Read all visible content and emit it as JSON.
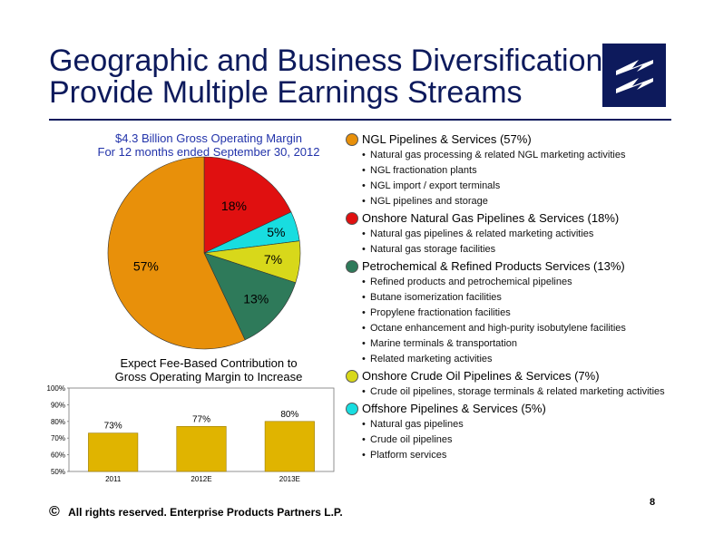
{
  "title": {
    "line1": "Geographic and Business Diversification",
    "line2": "Provide Multiple Earnings Streams"
  },
  "pie": {
    "caption_line1": "$4.3 Billion Gross Operating Margin",
    "caption_line2": "For 12 months ended September 30, 2012"
  },
  "chart_data": [
    {
      "type": "pie",
      "slices": [
        {
          "label": "NGL Pipelines & Services",
          "value": 57,
          "text": "57%",
          "color": "#e8900a"
        },
        {
          "label": "Onshore Natural Gas Pipelines & Services",
          "value": 18,
          "text": "18%",
          "color": "#e01010"
        },
        {
          "label": "Offshore Pipelines & Services",
          "value": 5,
          "text": "5%",
          "color": "#18dde0"
        },
        {
          "label": "Onshore Crude Oil Pipelines & Services",
          "value": 7,
          "text": "7%",
          "color": "#d8d81a"
        },
        {
          "label": "Petrochemical & Refined Products Services",
          "value": 13,
          "text": "13%",
          "color": "#2e7a5a"
        }
      ]
    },
    {
      "type": "bar",
      "title": "Expect Fee-Based Contribution to Gross Operating Margin to Increase",
      "categories": [
        "2011",
        "2012E",
        "2013E"
      ],
      "values": [
        73,
        77,
        80
      ],
      "value_labels": [
        "73%",
        "77%",
        "80%"
      ],
      "ylim": [
        50,
        100
      ],
      "yticks": [
        "50%",
        "60%",
        "70%",
        "80%",
        "90%",
        "100%"
      ],
      "color": "#e0b400"
    }
  ],
  "bar": {
    "caption_line1": "Expect Fee-Based Contribution to",
    "caption_line2": "Gross Operating Margin to Increase"
  },
  "legend": [
    {
      "name": "NGL Pipelines & Services (57%)",
      "color": "#e8900a",
      "items": [
        "Natural gas processing & related NGL marketing activities",
        "NGL fractionation plants",
        "NGL import / export terminals",
        "NGL pipelines and storage"
      ]
    },
    {
      "name": "Onshore Natural Gas Pipelines & Services (18%)",
      "color": "#e01010",
      "items": [
        "Natural gas pipelines & related marketing activities",
        "Natural gas storage facilities"
      ]
    },
    {
      "name": "Petrochemical & Refined Products Services (13%)",
      "color": "#2e7a5a",
      "items": [
        "Refined products and petrochemical pipelines",
        "Butane isomerization facilities",
        "Propylene fractionation facilities",
        "Octane enhancement and high-purity isobutylene facilities",
        "Marine terminals & transportation",
        "Related marketing activities"
      ]
    },
    {
      "name": "Onshore Crude Oil Pipelines & Services (7%)",
      "color": "#d8d81a",
      "items": [
        "Crude oil pipelines, storage terminals & related marketing activities"
      ]
    },
    {
      "name": "Offshore Pipelines & Services (5%)",
      "color": "#18dde0",
      "items": [
        "Natural gas pipelines",
        "Crude oil pipelines",
        "Platform services"
      ]
    }
  ],
  "footer": {
    "copyright_symbol": "©",
    "text": "All rights reserved. Enterprise Products Partners L.P."
  },
  "page_number": "8"
}
